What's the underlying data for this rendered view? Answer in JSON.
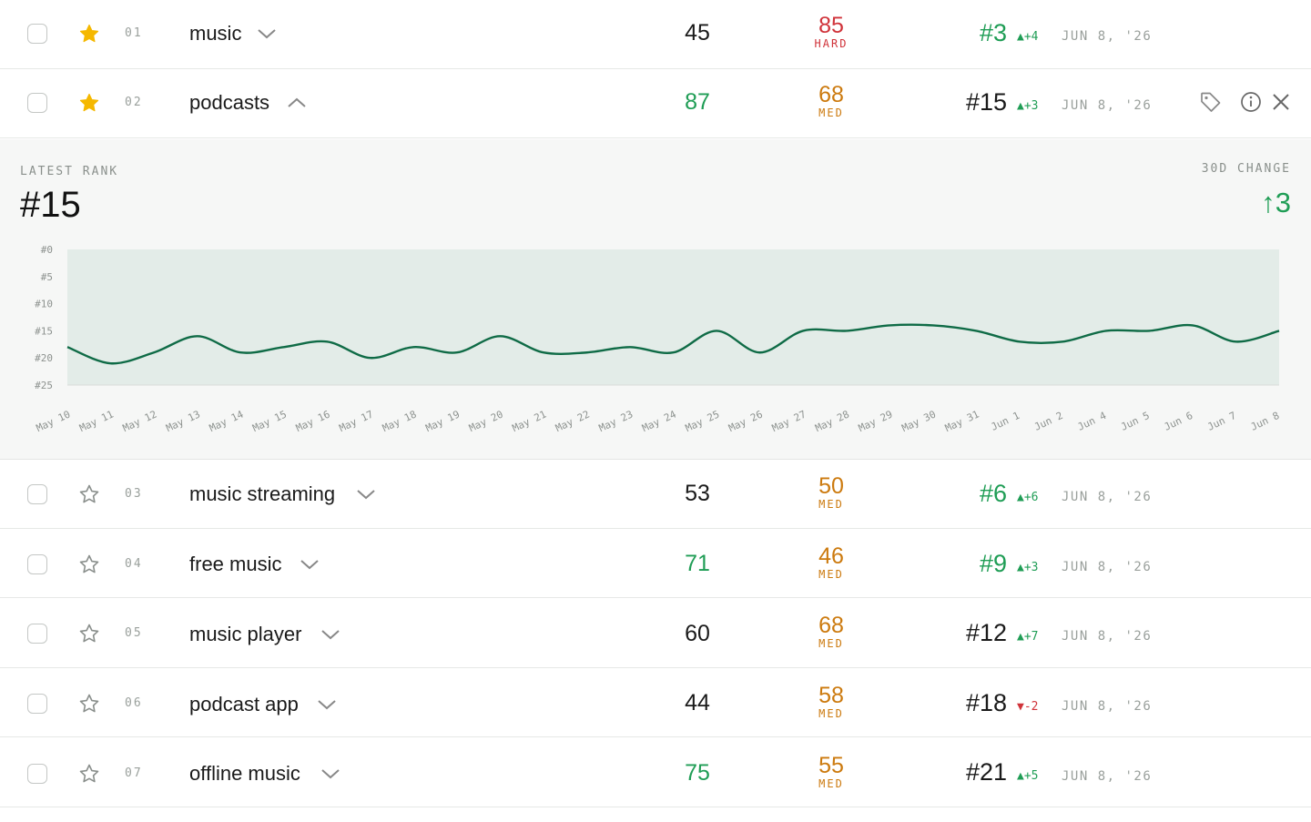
{
  "rows_top": [
    {
      "index": "01",
      "keyword": "music",
      "starred": true,
      "expanded": false,
      "volume": "45",
      "volume_color": "#1a1a1a",
      "difficulty": "85",
      "difficulty_label": "HARD",
      "difficulty_color": "#d0333a",
      "rank": "#3",
      "rank_color": "#1f9d55",
      "delta": "+4",
      "delta_dir": "up",
      "date": "JUN 8, '26"
    },
    {
      "index": "02",
      "keyword": "podcasts",
      "starred": true,
      "expanded": true,
      "volume": "87",
      "volume_color": "#1f9d55",
      "difficulty": "68",
      "difficulty_label": "MED",
      "difficulty_color": "#cc7a0e",
      "rank": "#15",
      "rank_color": "#1a1a1a",
      "delta": "+3",
      "delta_dir": "up",
      "date": "JUN 8, '26"
    }
  ],
  "detail": {
    "latest_rank_label": "LATEST RANK",
    "latest_rank": "#15",
    "change_label": "30D CHANGE",
    "change_value": "3",
    "change_arrow": "↑"
  },
  "chart_data": {
    "type": "area",
    "y_ticks": [
      "#0",
      "#5",
      "#10",
      "#15",
      "#20",
      "#25"
    ],
    "ylim": [
      0,
      25
    ],
    "y_inverted": true,
    "x": [
      "May 10",
      "May 11",
      "May 12",
      "May 13",
      "May 14",
      "May 15",
      "May 16",
      "May 17",
      "May 18",
      "May 19",
      "May 20",
      "May 21",
      "May 22",
      "May 23",
      "May 24",
      "May 25",
      "May 26",
      "May 27",
      "May 28",
      "May 29",
      "May 30",
      "May 31",
      "Jun 1",
      "Jun 2",
      "Jun 4",
      "Jun 5",
      "Jun 6",
      "Jun 7",
      "Jun 8"
    ],
    "series": [
      {
        "values": [
          18,
          21,
          19,
          16,
          19,
          18,
          17,
          20,
          18,
          19,
          16,
          19,
          19,
          18,
          19,
          15,
          19,
          15,
          15,
          14,
          14,
          15,
          17,
          17,
          15,
          15,
          14,
          17,
          15
        ]
      }
    ],
    "line_color": "#0f6b46",
    "fill_color": "#e3ece8",
    "grid": false
  },
  "rows_bottom": [
    {
      "index": "03",
      "keyword": "music streaming",
      "starred": false,
      "volume": "53",
      "volume_color": "#1a1a1a",
      "difficulty": "50",
      "difficulty_label": "MED",
      "difficulty_color": "#cc7a0e",
      "rank": "#6",
      "rank_color": "#1f9d55",
      "delta": "+6",
      "delta_dir": "up",
      "date": "JUN 8, '26"
    },
    {
      "index": "04",
      "keyword": "free music",
      "starred": false,
      "volume": "71",
      "volume_color": "#1f9d55",
      "difficulty": "46",
      "difficulty_label": "MED",
      "difficulty_color": "#cc7a0e",
      "rank": "#9",
      "rank_color": "#1f9d55",
      "delta": "+3",
      "delta_dir": "up",
      "date": "JUN 8, '26"
    },
    {
      "index": "05",
      "keyword": "music player",
      "starred": false,
      "volume": "60",
      "volume_color": "#1a1a1a",
      "difficulty": "68",
      "difficulty_label": "MED",
      "difficulty_color": "#cc7a0e",
      "rank": "#12",
      "rank_color": "#1a1a1a",
      "delta": "+7",
      "delta_dir": "up",
      "date": "JUN 8, '26"
    },
    {
      "index": "06",
      "keyword": "podcast app",
      "starred": false,
      "volume": "44",
      "volume_color": "#1a1a1a",
      "difficulty": "58",
      "difficulty_label": "MED",
      "difficulty_color": "#cc7a0e",
      "rank": "#18",
      "rank_color": "#1a1a1a",
      "delta": "-2",
      "delta_dir": "down",
      "date": "JUN 8, '26"
    },
    {
      "index": "07",
      "keyword": "offline music",
      "starred": false,
      "volume": "75",
      "volume_color": "#1f9d55",
      "difficulty": "55",
      "difficulty_label": "MED",
      "difficulty_color": "#cc7a0e",
      "rank": "#21",
      "rank_color": "#1a1a1a",
      "delta": "+5",
      "delta_dir": "up",
      "date": "JUN 8, '26"
    }
  ],
  "icons": {
    "star_filled": "star-filled-icon",
    "star_outline": "star-outline-icon",
    "tag": "tag-icon",
    "info": "info-icon",
    "close": "close-icon",
    "chevron_down": "chevron-down-icon",
    "chevron_up": "chevron-up-icon"
  },
  "colors": {
    "up": "#1f9d55",
    "down": "#d0333a",
    "star": "#f5b800"
  }
}
